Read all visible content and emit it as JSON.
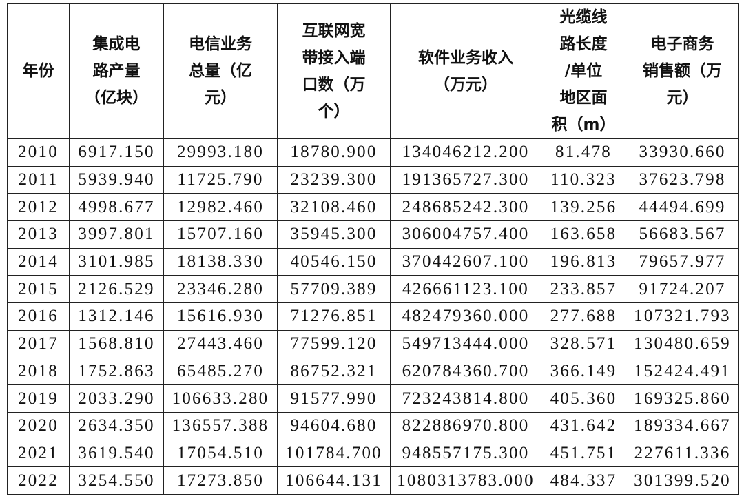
{
  "table": {
    "headers": [
      {
        "lines": [
          "年份"
        ]
      },
      {
        "lines": [
          "集成电",
          "路产量",
          "（亿块）"
        ]
      },
      {
        "lines": [
          "电信业务",
          "总量（亿",
          "元）"
        ]
      },
      {
        "lines": [
          "互联网宽",
          "带接入端",
          "口数（万",
          "个）"
        ]
      },
      {
        "lines": [
          "软件业务收入",
          "（万元）"
        ]
      },
      {
        "lines": [
          "光缆线",
          "路长度",
          "/单位",
          "地区面",
          "积（m）"
        ]
      },
      {
        "lines": [
          "电子商务",
          "销售额（万",
          "元）"
        ]
      }
    ],
    "rows": [
      [
        "2010",
        "6917.150",
        "29993.180",
        "18780.900",
        "134046212.200",
        "81.478",
        "33930.660"
      ],
      [
        "2011",
        "5939.940",
        "11725.790",
        "23239.300",
        "191365727.300",
        "110.323",
        "37623.798"
      ],
      [
        "2012",
        "4998.677",
        "12982.460",
        "32108.460",
        "248685242.300",
        "139.256",
        "44494.699"
      ],
      [
        "2013",
        "3997.801",
        "15707.160",
        "35945.300",
        "306004757.400",
        "163.658",
        "56683.567"
      ],
      [
        "2014",
        "3101.985",
        "18138.330",
        "40546.150",
        "370442607.100",
        "196.813",
        "79657.977"
      ],
      [
        "2015",
        "2126.529",
        "23346.280",
        "57709.389",
        "426661123.100",
        "233.857",
        "91724.207"
      ],
      [
        "2016",
        "1312.146",
        "15616.930",
        "71276.851",
        "482479360.000",
        "277.688",
        "107321.793"
      ],
      [
        "2017",
        "1568.810",
        "27443.460",
        "77599.120",
        "549713444.000",
        "328.571",
        "130480.659"
      ],
      [
        "2018",
        "1752.863",
        "65485.270",
        "86752.321",
        "620784360.700",
        "366.149",
        "152424.491"
      ],
      [
        "2019",
        "2033.290",
        "106633.280",
        "91577.990",
        "723243814.800",
        "405.360",
        "169325.860"
      ],
      [
        "2020",
        "2634.350",
        "136557.388",
        "94604.680",
        "822886970.800",
        "431.642",
        "189334.667"
      ],
      [
        "2021",
        "3619.540",
        "17054.510",
        "101784.700",
        "948557175.300",
        "451.751",
        "227611.336"
      ],
      [
        "2022",
        "3254.550",
        "17273.850",
        "106644.131",
        "1080313783.000",
        "484.337",
        "301399.520"
      ]
    ]
  }
}
